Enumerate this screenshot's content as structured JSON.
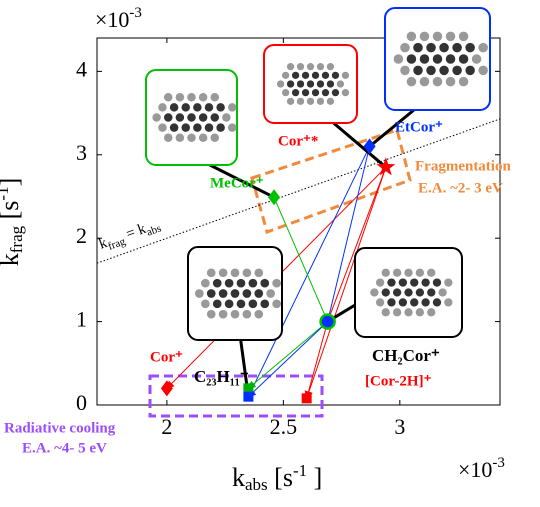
{
  "chart_data": {
    "type": "scatter",
    "xlabel": {
      "main": "k",
      "sub": "abs",
      "open": " [s",
      "sup": "-1",
      "close": " ]"
    },
    "ylabel": {
      "main": "k",
      "sub": "frag",
      "open": " [s",
      "sup": "-1",
      "close": "]"
    },
    "x_multiplier": {
      "base": "×10",
      "exp": "-3"
    },
    "y_multiplier": {
      "base": "×10",
      "exp": "-3"
    },
    "xlim": [
      1.7,
      3.43
    ],
    "ylim": [
      0,
      4.4
    ],
    "xticks": [
      2,
      2.5,
      3
    ],
    "yticks": [
      0,
      1,
      2,
      3,
      4
    ],
    "diagonal_label": {
      "a": "k",
      "a_sub": "frag",
      "eq": " = k",
      "b_sub": "abs"
    },
    "series": [
      {
        "name": "Cor⁺",
        "color": "#ff0000",
        "marker": "diamond",
        "x": [
          2.0
        ],
        "values": [
          0.2
        ]
      },
      {
        "color": "#00b000",
        "marker": "square",
        "x": [
          2.35
        ],
        "values": [
          0.2
        ]
      },
      {
        "name": "C₂₃H₁₁⁺",
        "color": "#0030ff",
        "marker": "square",
        "x": [
          2.35
        ],
        "values": [
          0.1
        ]
      },
      {
        "name": "[Cor-2H]⁺",
        "color": "#ff0000",
        "marker": "square",
        "x": [
          2.6
        ],
        "values": [
          0.08
        ]
      },
      {
        "name": "CH₂Cor⁺",
        "color": "#0030ff",
        "marker": "circle",
        "x": [
          2.69
        ],
        "values": [
          1.0
        ]
      },
      {
        "name": "MeCor⁺",
        "color": "#00c000",
        "marker": "diamond",
        "x": [
          2.46
        ],
        "values": [
          2.49
        ]
      },
      {
        "name": "EtCor⁺",
        "color": "#0030ff",
        "marker": "diamond",
        "x": [
          2.87
        ],
        "values": [
          3.1
        ]
      },
      {
        "name": "Cor⁺*",
        "color": "#ff0000",
        "marker": "star",
        "x": [
          2.94
        ],
        "values": [
          2.85
        ]
      }
    ],
    "annotations": {
      "fragmentation": [
        "Fragmentation",
        "E.A. ~2- 3 eV"
      ],
      "radiative": [
        "Radiative cooling",
        "E.A. ~4- 5 eV"
      ]
    }
  }
}
